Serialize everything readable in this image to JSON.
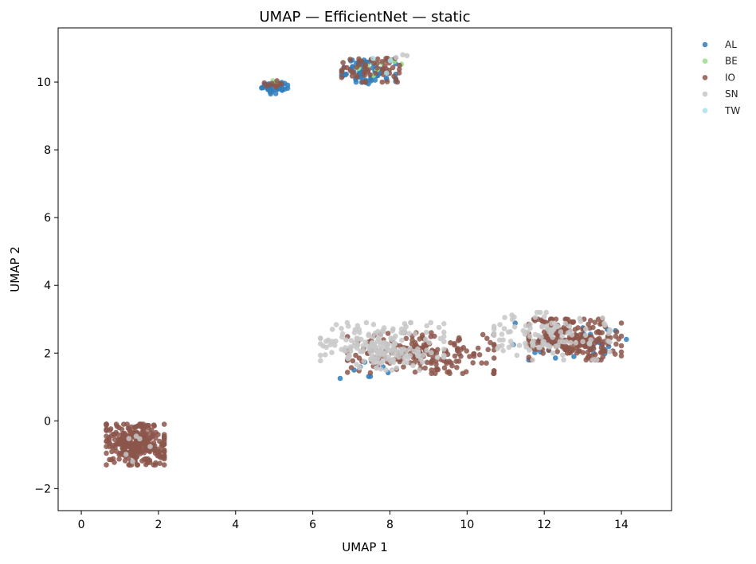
{
  "chart_data": {
    "type": "scatter",
    "title": "UMAP — EfficientNet — static",
    "xlabel": "UMAP 1",
    "ylabel": "UMAP 2",
    "xlim": [
      -0.6,
      15.3
    ],
    "ylim": [
      -2.65,
      11.6
    ],
    "xticks": [
      0,
      2,
      4,
      6,
      8,
      10,
      12,
      14
    ],
    "yticks": [
      -2,
      0,
      2,
      4,
      6,
      8,
      10
    ],
    "grid": false,
    "legend_position": "outside-right",
    "series": [
      {
        "name": "AL",
        "color": "#2f7ebc",
        "clusters": [
          {
            "center": [
              5.0,
              9.85
            ],
            "spread": [
              0.35,
              0.2
            ],
            "count": 45
          },
          {
            "center": [
              7.4,
              10.3
            ],
            "spread": [
              0.75,
              0.35
            ],
            "count": 70
          },
          {
            "center": [
              12.8,
              2.4
            ],
            "spread": [
              1.6,
              0.6
            ],
            "count": 28
          },
          {
            "center": [
              7.2,
              1.6
            ],
            "spread": [
              1.1,
              0.5
            ],
            "count": 8
          }
        ]
      },
      {
        "name": "BE",
        "color": "#98df8a",
        "clusters": [
          {
            "center": [
              7.6,
              10.4
            ],
            "spread": [
              0.7,
              0.3
            ],
            "count": 12
          },
          {
            "center": [
              5.0,
              9.95
            ],
            "spread": [
              0.2,
              0.1
            ],
            "count": 2
          }
        ]
      },
      {
        "name": "IO",
        "color": "#8c564b",
        "clusters": [
          {
            "center": [
              1.4,
              -0.7
            ],
            "spread": [
              0.75,
              0.6
            ],
            "count": 330
          },
          {
            "center": [
              7.5,
              10.35
            ],
            "spread": [
              0.75,
              0.35
            ],
            "count": 60
          },
          {
            "center": [
              5.0,
              9.9
            ],
            "spread": [
              0.3,
              0.15
            ],
            "count": 10
          },
          {
            "center": [
              8.8,
              2.0
            ],
            "spread": [
              1.9,
              0.6
            ],
            "count": 190
          },
          {
            "center": [
              12.8,
              2.4
            ],
            "spread": [
              1.2,
              0.6
            ],
            "count": 230
          }
        ]
      },
      {
        "name": "SN",
        "color": "#c7c7c7",
        "clusters": [
          {
            "center": [
              7.8,
              2.2
            ],
            "spread": [
              1.6,
              0.7
            ],
            "count": 200
          },
          {
            "center": [
              12.2,
              2.5
            ],
            "spread": [
              1.5,
              0.7
            ],
            "count": 110
          },
          {
            "center": [
              1.5,
              -0.8
            ],
            "spread": [
              0.4,
              0.4
            ],
            "count": 6
          },
          {
            "center": [
              8.3,
              10.75
            ],
            "spread": [
              0.2,
              0.1
            ],
            "count": 3
          }
        ]
      },
      {
        "name": "TW",
        "color": "#aadfea",
        "clusters": [
          {
            "center": [
              7.9,
              10.4
            ],
            "spread": [
              0.4,
              0.3
            ],
            "count": 3
          }
        ]
      }
    ]
  }
}
